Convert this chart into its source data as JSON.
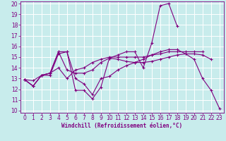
{
  "xlabel": "Windchill (Refroidissement éolien,°C)",
  "ylabel": "",
  "bg_color": "#c8ecec",
  "line_color": "#800080",
  "grid_color": "#ffffff",
  "xlim": [
    -0.5,
    23.5
  ],
  "ylim": [
    9.8,
    20.2
  ],
  "xticks": [
    0,
    1,
    2,
    3,
    4,
    5,
    6,
    7,
    8,
    9,
    10,
    11,
    12,
    13,
    14,
    15,
    16,
    17,
    18,
    19,
    20,
    21,
    22,
    23
  ],
  "yticks": [
    10,
    11,
    12,
    13,
    14,
    15,
    16,
    17,
    18,
    19,
    20
  ],
  "series": [
    [
      12.9,
      12.3,
      13.3,
      13.3,
      15.3,
      15.5,
      11.9,
      11.9,
      11.1,
      12.2,
      14.9,
      15.2,
      15.5,
      15.5,
      14.0,
      16.3,
      19.8,
      20.0,
      17.9,
      null,
      null,
      null,
      null,
      null
    ],
    [
      12.9,
      12.3,
      13.3,
      13.5,
      15.5,
      15.5,
      13.0,
      12.5,
      11.5,
      13.0,
      13.2,
      13.8,
      14.2,
      14.5,
      14.8,
      15.2,
      15.5,
      15.7,
      15.7,
      15.3,
      14.8,
      13.0,
      11.9,
      10.2
    ],
    [
      12.9,
      12.3,
      13.3,
      13.5,
      15.5,
      13.8,
      13.5,
      13.5,
      13.8,
      14.5,
      14.9,
      14.8,
      14.6,
      14.5,
      14.5,
      14.6,
      14.8,
      15.0,
      15.2,
      15.3,
      15.3,
      15.2,
      14.8,
      null
    ],
    [
      12.9,
      12.8,
      13.3,
      13.5,
      14.0,
      13.0,
      13.8,
      14.0,
      14.5,
      14.8,
      15.0,
      15.0,
      15.0,
      15.0,
      15.0,
      15.2,
      15.3,
      15.5,
      15.5,
      15.5,
      15.5,
      15.5,
      null,
      null
    ]
  ],
  "tick_fontsize": 5.5,
  "xlabel_fontsize": 5.5
}
